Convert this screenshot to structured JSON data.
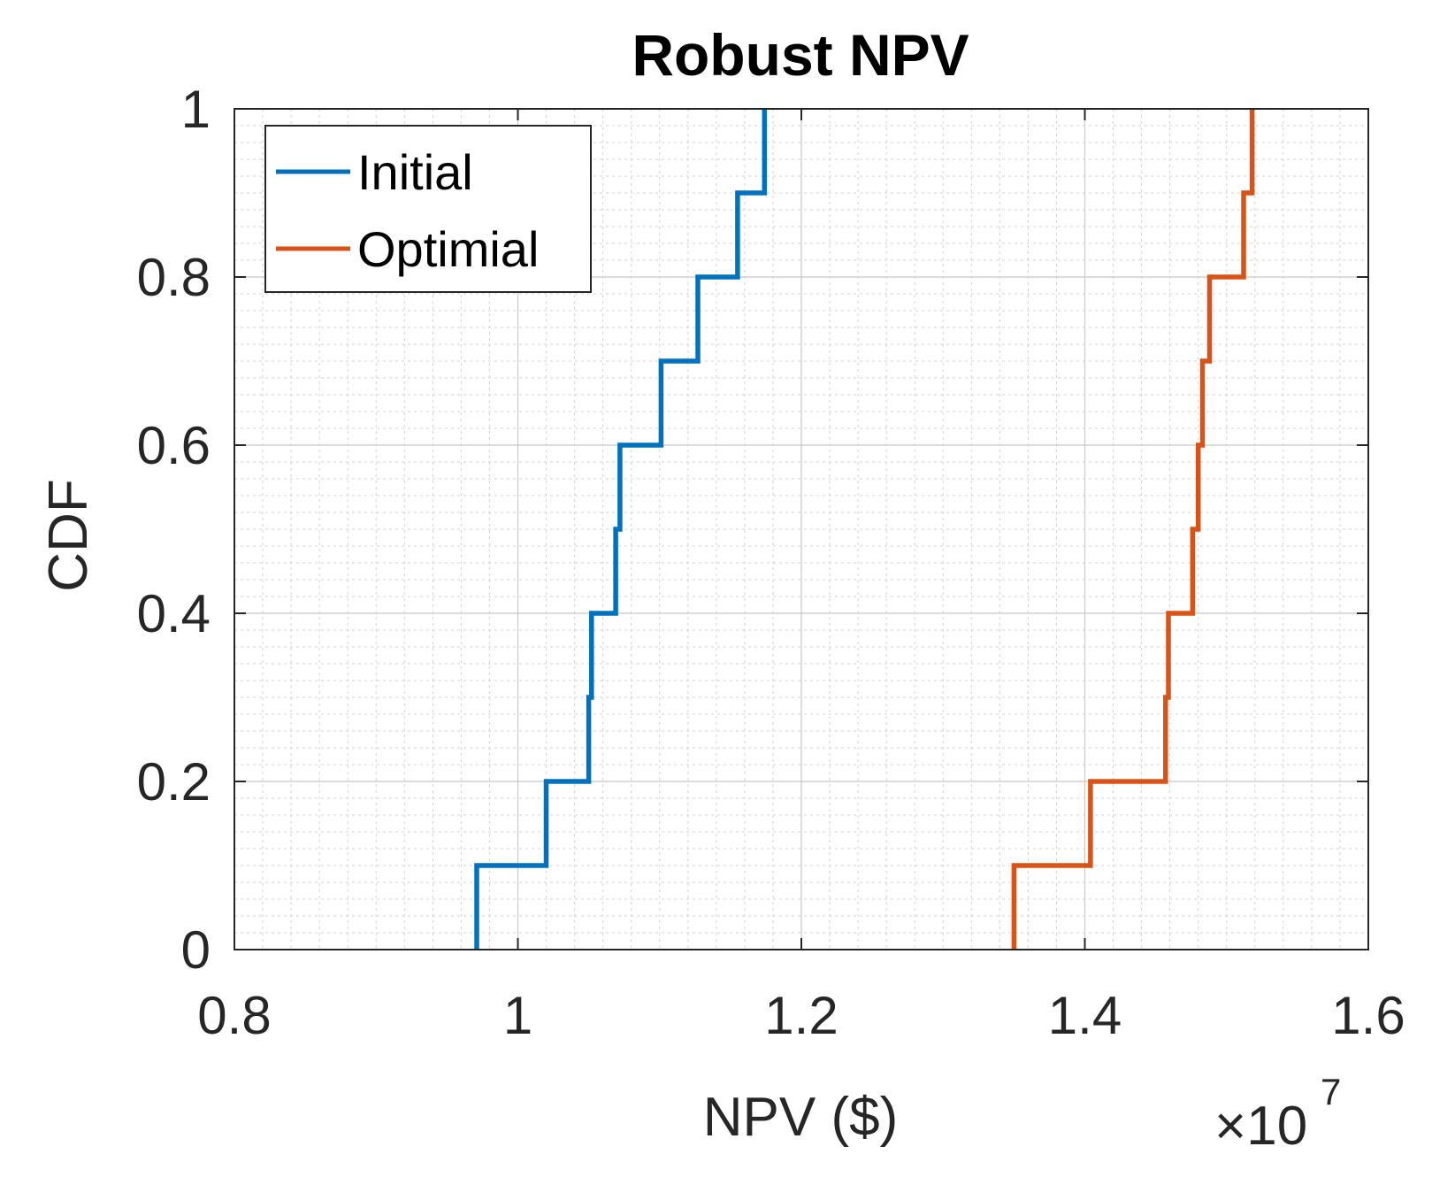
{
  "chart_data": {
    "type": "line",
    "subtype": "empirical-cdf-step",
    "title": "Robust NPV",
    "xlabel": "NPV ($)",
    "ylabel": "CDF",
    "xlim": [
      0.8,
      1.6
    ],
    "ylim": [
      0,
      1
    ],
    "x_exponent_label": "×10",
    "x_exponent_power": "7",
    "x_ticks": [
      0.8,
      1.0,
      1.2,
      1.4,
      1.6
    ],
    "x_tick_labels": [
      "0.8",
      "1",
      "1.2",
      "1.4",
      "1.6"
    ],
    "y_ticks": [
      0,
      0.2,
      0.4,
      0.6,
      0.8,
      1.0
    ],
    "y_tick_labels": [
      "0",
      "0.2",
      "0.4",
      "0.6",
      "0.8",
      "1"
    ],
    "grid": true,
    "minor_grid": true,
    "legend_position": "top-left",
    "series": [
      {
        "name": "Initial",
        "color": "#0072BD",
        "x": [
          0.971,
          1.02,
          1.05,
          1.052,
          1.069,
          1.072,
          1.101,
          1.127,
          1.155,
          1.174
        ],
        "y": [
          0.1,
          0.2,
          0.3,
          0.4,
          0.5,
          0.6,
          0.7,
          0.8,
          0.9,
          1.0
        ]
      },
      {
        "name": "Optimial",
        "color": "#D95319",
        "x": [
          1.35,
          1.404,
          1.457,
          1.459,
          1.476,
          1.48,
          1.483,
          1.488,
          1.512,
          1.518
        ],
        "y": [
          0.1,
          0.2,
          0.3,
          0.4,
          0.5,
          0.6,
          0.7,
          0.8,
          0.9,
          1.0
        ]
      }
    ]
  }
}
